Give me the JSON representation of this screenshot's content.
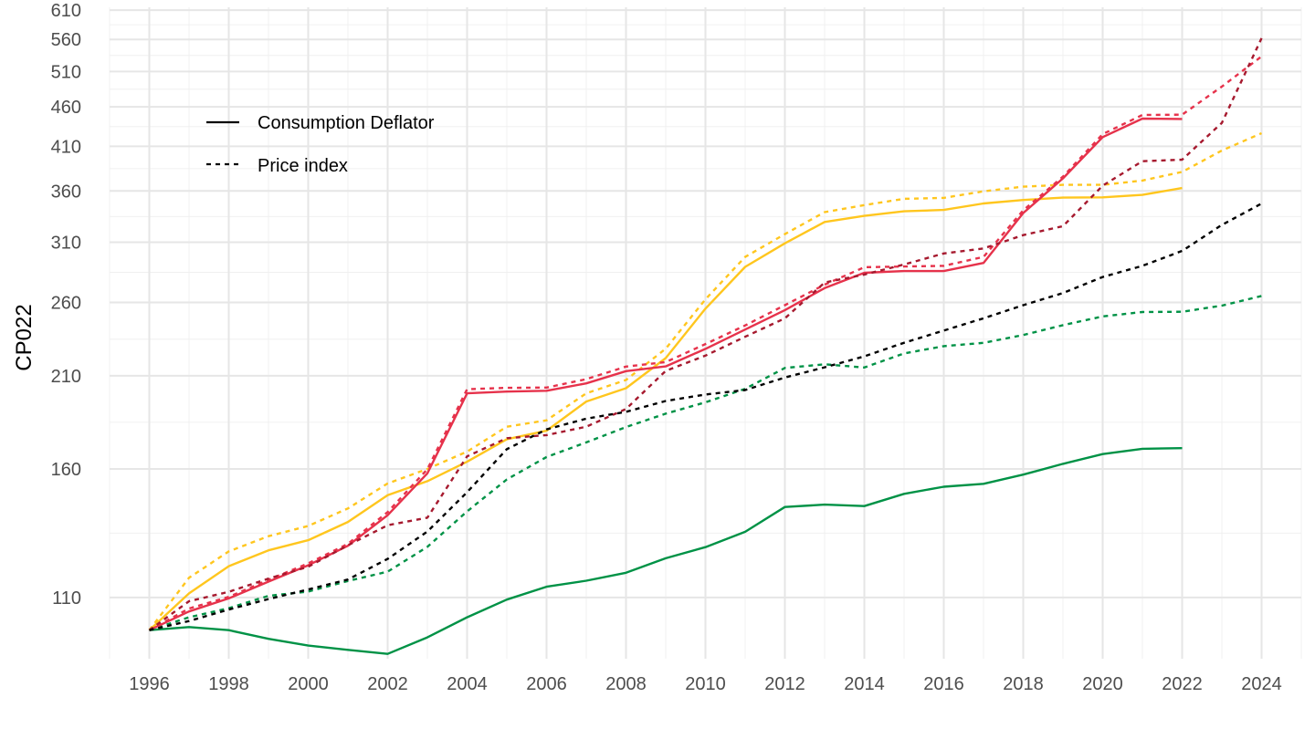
{
  "chart_data": {
    "type": "line",
    "title": "",
    "xlabel": "",
    "ylabel": "CP022",
    "y_scale": "log",
    "xlim": [
      1995,
      2025
    ],
    "ylim": [
      92,
      615
    ],
    "x_ticks": [
      "1996",
      "1998",
      "2000",
      "2002",
      "2004",
      "2006",
      "2008",
      "2010",
      "2012",
      "2014",
      "2016",
      "2018",
      "2020",
      "2022",
      "2024"
    ],
    "y_ticks": [
      "110",
      "160",
      "210",
      "260",
      "310",
      "360",
      "410",
      "460",
      "510",
      "560",
      "610"
    ],
    "grid": true,
    "legend": {
      "position": "top-left",
      "entries": [
        {
          "label": "Consumption Deflator",
          "line": "solid"
        },
        {
          "label": "Price index",
          "line": "dotted"
        }
      ]
    },
    "series": [
      {
        "kind": "deflator",
        "color": "#009246",
        "dash": "solid",
        "x": [
          1996,
          1997,
          1998,
          1999,
          2000,
          2001,
          2002,
          2003,
          2004,
          2005,
          2006,
          2007,
          2008,
          2009,
          2010,
          2011,
          2012,
          2013,
          2014,
          2015,
          2016,
          2017,
          2018,
          2019,
          2020,
          2021,
          2022
        ],
        "y": [
          100,
          100.9,
          100,
          97.5,
          95.6,
          94.4,
          93.3,
          97.9,
          103.8,
          109.3,
          113.5,
          115.5,
          118.2,
          123.3,
          127.4,
          133.2,
          143.2,
          144.2,
          143.6,
          148.8,
          151.9,
          153.2,
          157.4,
          162.4,
          167.1,
          169.7,
          170
        ]
      },
      {
        "kind": "price",
        "color": "#009246",
        "dash": "dotted",
        "x": [
          1996,
          1997,
          1998,
          1999,
          2000,
          2001,
          2002,
          2003,
          2004,
          2005,
          2006,
          2007,
          2008,
          2009,
          2010,
          2011,
          2012,
          2013,
          2014,
          2015,
          2016,
          2017,
          2018,
          2019,
          2020,
          2021,
          2022,
          2023,
          2024
        ],
        "y": [
          100,
          103.8,
          106.6,
          110.5,
          111.9,
          115.4,
          118.6,
          127.5,
          141.4,
          155.2,
          165.7,
          172.9,
          180.8,
          188,
          194.3,
          202.1,
          214.8,
          217.1,
          215.1,
          224.1,
          228.9,
          231.1,
          236.5,
          243.4,
          249.7,
          252.9,
          253.1,
          257.6,
          265
        ]
      },
      {
        "kind": "deflator",
        "color": "#FFC61E",
        "dash": "solid",
        "x": [
          1996,
          1997,
          1998,
          1999,
          2000,
          2001,
          2002,
          2003,
          2004,
          2005,
          2006,
          2007,
          2008,
          2009,
          2010,
          2011,
          2012,
          2013,
          2014,
          2015,
          2016,
          2017,
          2018,
          2019,
          2020,
          2021,
          2022
        ],
        "y": [
          100,
          111.3,
          120.5,
          126.2,
          130,
          137.1,
          148.2,
          154.4,
          163.4,
          174.5,
          178.9,
          194.8,
          202.5,
          221.1,
          255.4,
          288.5,
          309,
          328.8,
          334.7,
          339.2,
          340.6,
          347.1,
          350.6,
          353,
          353.3,
          355.9,
          363
        ]
      },
      {
        "kind": "price",
        "color": "#FFC61E",
        "dash": "dotted",
        "x": [
          1996,
          1997,
          1998,
          1999,
          2000,
          2001,
          2002,
          2003,
          2004,
          2005,
          2006,
          2007,
          2008,
          2009,
          2010,
          2011,
          2012,
          2013,
          2014,
          2015,
          2016,
          2017,
          2018,
          2019,
          2020,
          2021,
          2022,
          2023,
          2024
        ],
        "y": [
          100,
          116.5,
          125.8,
          131.5,
          135.5,
          142.6,
          153.4,
          160,
          168.3,
          181,
          184.4,
          199.5,
          207.4,
          227.2,
          262.4,
          297,
          317.4,
          338.4,
          345.4,
          351.8,
          352.8,
          359.6,
          364.5,
          366.4,
          366.4,
          371,
          380.5,
          405,
          426
        ]
      },
      {
        "kind": "deflator",
        "color": "#E6324B",
        "dash": "solid",
        "x": [
          1996,
          1997,
          1998,
          1999,
          2000,
          2001,
          2002,
          2003,
          2004,
          2005,
          2006,
          2007,
          2008,
          2009,
          2010,
          2011,
          2012,
          2013,
          2014,
          2015,
          2016,
          2017,
          2018,
          2019,
          2020,
          2021,
          2022
        ],
        "y": [
          100,
          105.6,
          109.7,
          115.2,
          120.8,
          127.9,
          139.8,
          158,
          199.5,
          200.5,
          201,
          205.4,
          212.8,
          215.8,
          227.1,
          240.3,
          254.3,
          271.1,
          283.5,
          285,
          285,
          291.8,
          337.5,
          373.4,
          421.2,
          444.5,
          444
        ]
      },
      {
        "kind": "price",
        "color": "#E6324B",
        "dash": "dotted",
        "x": [
          1996,
          1997,
          1998,
          1999,
          2000,
          2001,
          2002,
          2003,
          2004,
          2005,
          2006,
          2007,
          2008,
          2009,
          2010,
          2011,
          2012,
          2013,
          2014,
          2015,
          2016,
          2017,
          2018,
          2019,
          2020,
          2021,
          2022,
          2023,
          2024
        ],
        "y": [
          100,
          106.5,
          110.2,
          115.8,
          121.5,
          128.6,
          141.1,
          159.9,
          201.9,
          202.7,
          202.9,
          207.9,
          215.7,
          218.5,
          230.3,
          243.2,
          258,
          273.9,
          288.2,
          288.8,
          289.3,
          297,
          340.2,
          375.3,
          424.9,
          449.3,
          449.6,
          488,
          533
        ]
      },
      {
        "kind": "price",
        "color": "#A6192E",
        "dash": "dotted",
        "x": [
          1996,
          1997,
          1998,
          1999,
          2000,
          2001,
          2002,
          2003,
          2004,
          2005,
          2006,
          2007,
          2008,
          2009,
          2010,
          2011,
          2012,
          2013,
          2014,
          2015,
          2016,
          2017,
          2018,
          2019,
          2020,
          2021,
          2022,
          2023,
          2024
        ],
        "y": [
          100,
          108.8,
          111.8,
          116.2,
          120.3,
          128.1,
          135.8,
          138.8,
          166,
          175,
          176.6,
          181,
          190.6,
          213,
          222.7,
          235.3,
          248.3,
          275.6,
          282.1,
          290.5,
          300,
          304.4,
          316.5,
          324.8,
          365.6,
          392.6,
          394.4,
          439,
          562
        ]
      },
      {
        "kind": "price",
        "color": "#000000",
        "dash": "dotted",
        "x": [
          1996,
          1997,
          1998,
          1999,
          2000,
          2001,
          2002,
          2003,
          2004,
          2005,
          2006,
          2007,
          2008,
          2009,
          2010,
          2011,
          2012,
          2013,
          2014,
          2015,
          2016,
          2017,
          2018,
          2019,
          2020,
          2021,
          2022,
          2023,
          2024
        ],
        "y": [
          100,
          102.7,
          106.2,
          109.5,
          112.6,
          115.9,
          123.1,
          133.3,
          149.5,
          169.5,
          179.6,
          185.3,
          189,
          195.1,
          198.8,
          201.4,
          208.9,
          215.2,
          222.2,
          231.2,
          239.6,
          248.3,
          258,
          267.3,
          280.1,
          289.3,
          302.2,
          326,
          347
        ]
      }
    ]
  }
}
